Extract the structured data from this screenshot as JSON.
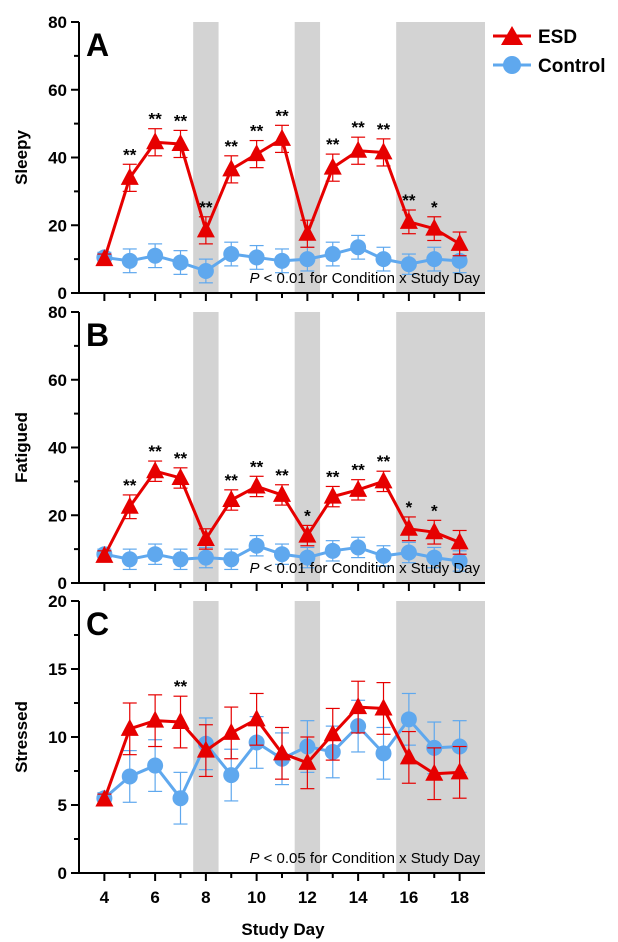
{
  "legend": {
    "esd_label": "ESD",
    "control_label": "Control"
  },
  "xlabel": "Study Day",
  "colors": {
    "esd": "#e60000",
    "control": "#5fa8ee",
    "shade": "#d3d3d3",
    "axis": "#000000"
  },
  "chart_data": [
    {
      "type": "line",
      "panel": "A",
      "ylabel": "Sleepy",
      "ylim": [
        0,
        80
      ],
      "yticks": [
        0,
        20,
        40,
        60,
        80
      ],
      "xlim": [
        3,
        19
      ],
      "xticks": [
        4,
        6,
        8,
        10,
        12,
        14,
        16,
        18
      ],
      "shaded_days": [
        [
          7.5,
          8.5
        ],
        [
          11.5,
          12.5
        ],
        [
          15.5,
          19
        ]
      ],
      "x": [
        4,
        5,
        6,
        7,
        8,
        9,
        10,
        11,
        12,
        13,
        14,
        15,
        16,
        17,
        18
      ],
      "series": [
        {
          "name": "ESD",
          "marker": "triangle",
          "values": [
            10,
            34,
            44.5,
            44,
            18.5,
            36.5,
            41,
            45.5,
            17.5,
            37,
            42,
            41.5,
            21,
            19,
            14.5
          ],
          "errors": [
            1.5,
            4,
            4,
            4,
            4,
            4,
            4,
            4,
            4,
            4,
            4,
            4,
            3.5,
            3.5,
            3.5
          ]
        },
        {
          "name": "Control",
          "marker": "circle",
          "values": [
            10.5,
            9.5,
            11,
            9,
            6.5,
            11.5,
            10.5,
            9.5,
            10,
            11.5,
            13.5,
            10,
            8.5,
            10,
            9.5
          ],
          "errors": [
            1.5,
            3.5,
            3.5,
            3.5,
            3.5,
            3.5,
            3.5,
            3.5,
            3.5,
            3.5,
            3.5,
            3.5,
            3,
            3.5,
            3.5
          ]
        }
      ],
      "significance": [
        {
          "x": 5,
          "label": "**"
        },
        {
          "x": 6,
          "label": "**"
        },
        {
          "x": 7,
          "label": "**"
        },
        {
          "x": 8,
          "label": "**"
        },
        {
          "x": 9,
          "label": "**"
        },
        {
          "x": 10,
          "label": "**"
        },
        {
          "x": 11,
          "label": "**"
        },
        {
          "x": 13,
          "label": "**"
        },
        {
          "x": 14,
          "label": "**"
        },
        {
          "x": 15,
          "label": "**"
        },
        {
          "x": 16,
          "label": "**"
        },
        {
          "x": 17,
          "label": "*"
        }
      ],
      "annotation_p": "P",
      "annotation_text": " < 0.01 for Condition x Study Day"
    },
    {
      "type": "line",
      "panel": "B",
      "ylabel": "Fatigued",
      "ylim": [
        0,
        80
      ],
      "yticks": [
        0,
        20,
        40,
        60,
        80
      ],
      "xlim": [
        3,
        19
      ],
      "xticks": [
        4,
        6,
        8,
        10,
        12,
        14,
        16,
        18
      ],
      "shaded_days": [
        [
          7.5,
          8.5
        ],
        [
          11.5,
          12.5
        ],
        [
          15.5,
          19
        ]
      ],
      "x": [
        4,
        5,
        6,
        7,
        8,
        9,
        10,
        11,
        12,
        13,
        14,
        15,
        16,
        17,
        18
      ],
      "series": [
        {
          "name": "ESD",
          "marker": "triangle",
          "values": [
            8,
            22.5,
            33,
            31,
            13,
            24.5,
            28.5,
            26,
            14,
            25.5,
            27.5,
            30,
            16,
            15,
            12
          ],
          "errors": [
            1.5,
            3.5,
            3,
            3,
            3,
            3,
            3,
            3,
            3,
            3,
            3,
            3,
            3.5,
            3.5,
            3.5
          ]
        },
        {
          "name": "Control",
          "marker": "circle",
          "values": [
            8.5,
            7,
            8.5,
            7,
            7.5,
            7,
            11,
            8.5,
            7.5,
            9.5,
            10.5,
            8,
            9,
            7.5,
            6.5
          ],
          "errors": [
            1.5,
            3,
            3,
            3,
            3,
            3,
            3,
            3,
            3,
            3,
            3,
            3,
            3,
            3,
            3
          ]
        }
      ],
      "significance": [
        {
          "x": 5,
          "label": "**"
        },
        {
          "x": 6,
          "label": "**"
        },
        {
          "x": 7,
          "label": "**"
        },
        {
          "x": 9,
          "label": "**"
        },
        {
          "x": 10,
          "label": "**"
        },
        {
          "x": 11,
          "label": "**"
        },
        {
          "x": 12,
          "label": "*"
        },
        {
          "x": 13,
          "label": "**"
        },
        {
          "x": 14,
          "label": "**"
        },
        {
          "x": 15,
          "label": "**"
        },
        {
          "x": 16,
          "label": "*"
        },
        {
          "x": 17,
          "label": "*"
        }
      ],
      "annotation_p": "P",
      "annotation_text": " < 0.01 for Condition x Study Day"
    },
    {
      "type": "line",
      "panel": "C",
      "ylabel": "Stressed",
      "ylim": [
        0,
        20
      ],
      "yticks": [
        0,
        5,
        10,
        15,
        20
      ],
      "xlim": [
        3,
        19
      ],
      "xticks": [
        4,
        6,
        8,
        10,
        12,
        14,
        16,
        18
      ],
      "shaded_days": [
        [
          7.5,
          8.5
        ],
        [
          11.5,
          12.5
        ],
        [
          15.5,
          19
        ]
      ],
      "x": [
        4,
        5,
        6,
        7,
        8,
        9,
        10,
        11,
        12,
        13,
        14,
        15,
        16,
        17,
        18
      ],
      "series": [
        {
          "name": "ESD",
          "marker": "triangle",
          "values": [
            5.4,
            10.6,
            11.2,
            11.1,
            9,
            10.3,
            11.3,
            8.8,
            8.1,
            10.2,
            12.2,
            12.1,
            8.5,
            7.3,
            7.4
          ],
          "errors": [
            0.4,
            1.9,
            1.9,
            1.9,
            1.9,
            1.9,
            1.9,
            1.9,
            1.9,
            1.9,
            1.9,
            1.9,
            1.9,
            1.9,
            1.9
          ]
        },
        {
          "name": "Control",
          "marker": "circle",
          "values": [
            5.5,
            7.1,
            7.9,
            5.5,
            9.5,
            7.2,
            9.6,
            8.4,
            9.3,
            8.9,
            10.8,
            8.8,
            11.3,
            9.2,
            9.3
          ],
          "errors": [
            0.4,
            1.9,
            1.9,
            1.9,
            1.9,
            1.9,
            1.9,
            1.9,
            1.9,
            1.9,
            1.9,
            1.9,
            1.9,
            1.9,
            1.9
          ]
        }
      ],
      "significance": [
        {
          "x": 7,
          "label": "**"
        }
      ],
      "annotation_p": "P",
      "annotation_text": " < 0.05 for Condition x Study Day"
    }
  ]
}
